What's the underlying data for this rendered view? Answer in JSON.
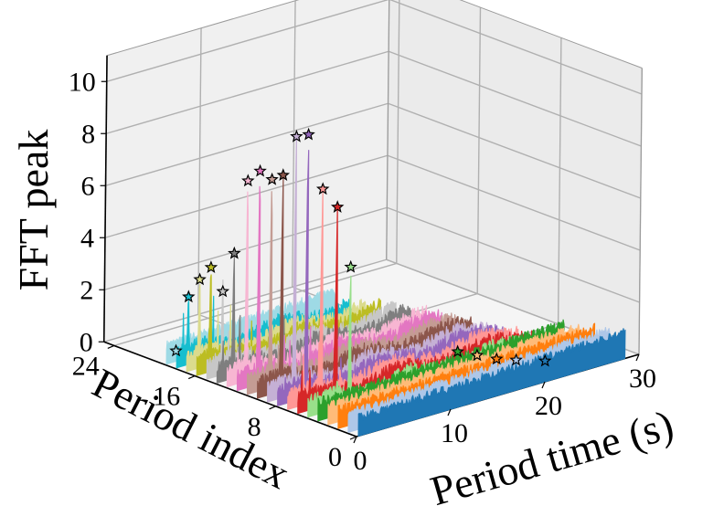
{
  "chart_data": {
    "type": "3d-waterfall",
    "zlabel": "FFT peak",
    "xlabel": "Period time (s)",
    "ylabel": "Period index",
    "zlim": [
      0,
      11
    ],
    "xlim": [
      0,
      30
    ],
    "ylim": [
      0,
      25
    ],
    "z_ticks": [
      "0",
      "2",
      "4",
      "6",
      "8",
      "10"
    ],
    "x_ticks": [
      "0",
      "10",
      "20",
      "30"
    ],
    "y_ticks": [
      "0",
      "8",
      "16",
      "24"
    ],
    "series": [
      {
        "index": 0,
        "color": "#1f77b4",
        "peak_time": 20.0,
        "peak_value": 0.8
      },
      {
        "index": 1,
        "color": "#aec7e8",
        "peak_time": 18.0,
        "peak_value": 0.9
      },
      {
        "index": 2,
        "color": "#ff7f0e",
        "peak_time": 17.0,
        "peak_value": 0.9
      },
      {
        "index": 3,
        "color": "#ffbb78",
        "peak_time": 16.0,
        "peak_value": 1.0
      },
      {
        "index": 4,
        "color": "#2ca02c",
        "peak_time": 15.0,
        "peak_value": 1.1
      },
      {
        "index": 5,
        "color": "#98df8a",
        "peak_time": 4.6,
        "peak_value": 5.3
      },
      {
        "index": 6,
        "color": "#d62728",
        "peak_time": 4.2,
        "peak_value": 7.5
      },
      {
        "index": 7,
        "color": "#ff9896",
        "peak_time": 3.7,
        "peak_value": 8.1
      },
      {
        "index": 8,
        "color": "#9467bd",
        "peak_time": 3.2,
        "peak_value": 10.1
      },
      {
        "index": 9,
        "color": "#c5b0d5",
        "peak_time": 3.0,
        "peak_value": 9.9
      },
      {
        "index": 10,
        "color": "#8c564b",
        "peak_time": 2.7,
        "peak_value": 8.3
      },
      {
        "index": 11,
        "color": "#c49c94",
        "peak_time": 2.6,
        "peak_value": 8.0
      },
      {
        "index": 12,
        "color": "#e377c2",
        "peak_time": 2.4,
        "peak_value": 8.2
      },
      {
        "index": 13,
        "color": "#f7b6d2",
        "peak_time": 2.2,
        "peak_value": 7.7
      },
      {
        "index": 14,
        "color": "#7f7f7f",
        "peak_time": 1.9,
        "peak_value": 4.8
      },
      {
        "index": 15,
        "color": "#c7c7c7",
        "peak_time": 1.8,
        "peak_value": 3.2
      },
      {
        "index": 16,
        "color": "#bcbd22",
        "peak_time": 1.6,
        "peak_value": 4.0
      },
      {
        "index": 17,
        "color": "#dbdb8d",
        "peak_time": 1.5,
        "peak_value": 3.4
      },
      {
        "index": 18,
        "color": "#17becf",
        "peak_time": 1.4,
        "peak_value": 2.6
      },
      {
        "index": 19,
        "color": "#9edae5",
        "peak_time": 1.2,
        "peak_value": 0.4
      }
    ]
  }
}
